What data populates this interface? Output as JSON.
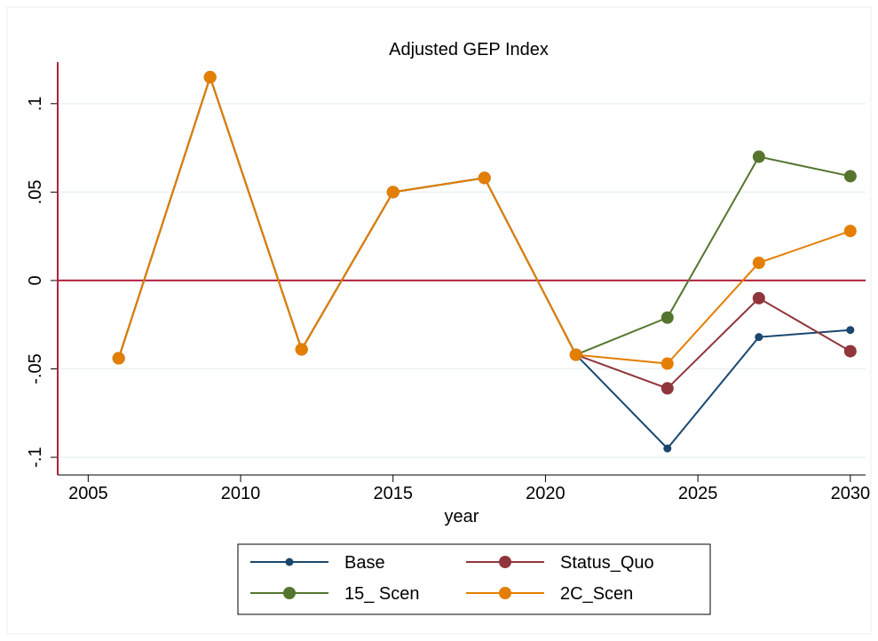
{
  "chart_data": {
    "type": "line",
    "title": "Adjusted GEP Index",
    "xlabel": "year",
    "x": [
      2006,
      2009,
      2012,
      2015,
      2018,
      2021,
      2024,
      2027,
      2030
    ],
    "series": [
      {
        "name": "Base",
        "color": "#1a476f",
        "values": [
          -0.044,
          0.115,
          -0.039,
          0.05,
          0.058,
          -0.042,
          -0.095,
          -0.032,
          -0.028
        ]
      },
      {
        "name": "Status_Quo",
        "color": "#90353b",
        "values": [
          -0.044,
          0.115,
          -0.039,
          0.05,
          0.058,
          -0.042,
          -0.061,
          -0.01,
          -0.04
        ]
      },
      {
        "name": "15_ Scen",
        "color": "#55752f",
        "values": [
          -0.044,
          0.115,
          -0.039,
          0.05,
          0.058,
          -0.042,
          -0.021,
          0.07,
          0.059
        ]
      },
      {
        "name": "2C_Scen",
        "color": "#e37e00",
        "values": [
          -0.044,
          0.115,
          -0.039,
          0.05,
          0.058,
          -0.042,
          -0.047,
          0.01,
          0.028
        ]
      }
    ],
    "xlim": [
      2004,
      2030.5
    ],
    "xticks": [
      2005,
      2010,
      2015,
      2020,
      2025,
      2030
    ],
    "ylim": [
      -0.11,
      0.125
    ],
    "yticks": [
      {
        "value": -0.1,
        "label": "-.1"
      },
      {
        "value": -0.05,
        "label": "-.05"
      },
      0,
      {
        "value": 0.05,
        "label": ".05"
      },
      {
        "value": 0.1,
        "label": ".1"
      }
    ],
    "grid": true,
    "reference_line": 0,
    "reference_color": "#b0213d",
    "legend": "bottom"
  }
}
